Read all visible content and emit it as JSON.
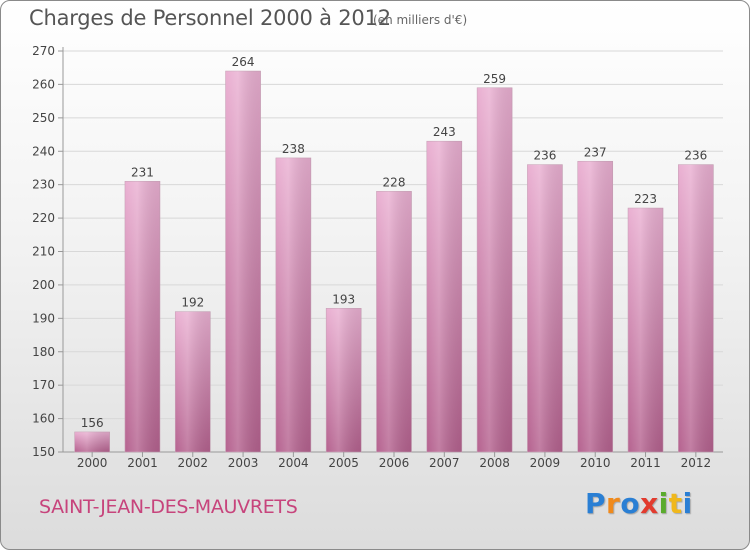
{
  "header": {
    "title": "Charges de Personnel 2000 à 2012",
    "subtitle": "(en milliers d'€)"
  },
  "footer": {
    "commune": "SAINT-JEAN-DES-MAUVRETS",
    "logo_letters": [
      "P",
      "r",
      "o",
      "x",
      "i",
      "t",
      "i"
    ],
    "logo_colors": [
      "#2a7fd4",
      "#f08a1c",
      "#2a7fd4",
      "#e23b2e",
      "#5aab2c",
      "#f0b81c",
      "#2a7fd4"
    ]
  },
  "colors": {
    "bar": "#d98fb8",
    "bar_light": "#eab0d2",
    "bar_dark": "#b5628f",
    "axis": "#999999",
    "grid": "#d8d8d8",
    "text": "#444444"
  },
  "chart_data": {
    "type": "bar",
    "categories": [
      "2000",
      "2001",
      "2002",
      "2003",
      "2004",
      "2005",
      "2006",
      "2007",
      "2008",
      "2009",
      "2010",
      "2011",
      "2012"
    ],
    "values": [
      156,
      231,
      192,
      264,
      238,
      193,
      228,
      243,
      259,
      236,
      237,
      223,
      236
    ],
    "data_labels": [
      "156",
      "231",
      "192",
      "264",
      "238",
      "193",
      "228",
      "243",
      "259",
      "236",
      "237",
      "223",
      "236"
    ],
    "yticks": [
      150,
      160,
      170,
      180,
      190,
      200,
      210,
      220,
      230,
      240,
      250,
      260,
      270
    ],
    "ylim": [
      150,
      270
    ],
    "title": "Charges de Personnel 2000 à 2012",
    "subtitle": "(en milliers d'€)",
    "xlabel": "",
    "ylabel": "",
    "grid": true,
    "legend": "none"
  }
}
